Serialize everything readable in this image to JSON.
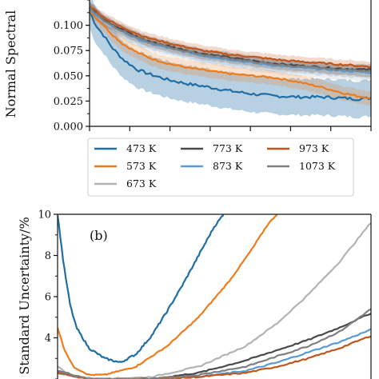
{
  "chart_data": [
    {
      "type": "line",
      "panel": "a",
      "ylabel": "Normal Spectral",
      "ylim": [
        0.0,
        0.125
      ],
      "yticks": [
        "0.000",
        "0.025",
        "0.050",
        "0.075",
        "0.100"
      ],
      "ytick_values": [
        0.0,
        0.025,
        0.05,
        0.075,
        0.1
      ],
      "xlim": [
        0,
        1
      ],
      "bands": true,
      "series": [
        {
          "name": "473 K",
          "color": "#1f6ea5",
          "x": [
            0.0,
            0.02,
            0.05,
            0.08,
            0.12,
            0.17,
            0.22,
            0.28,
            0.35,
            0.42,
            0.5,
            0.58,
            0.66,
            0.74,
            0.82,
            0.9,
            0.95,
            1.0
          ],
          "values": [
            0.115,
            0.101,
            0.09,
            0.078,
            0.066,
            0.056,
            0.051,
            0.046,
            0.042,
            0.039,
            0.035,
            0.032,
            0.03,
            0.029,
            0.029,
            0.028,
            0.027,
            0.028
          ],
          "band": 0.018
        },
        {
          "name": "573 K",
          "color": "#ec7c1e",
          "x": [
            0.0,
            0.02,
            0.05,
            0.08,
            0.12,
            0.17,
            0.22,
            0.28,
            0.35,
            0.42,
            0.5,
            0.58,
            0.66,
            0.74,
            0.82,
            0.9,
            0.95,
            1.0
          ],
          "values": [
            0.115,
            0.108,
            0.1,
            0.091,
            0.081,
            0.073,
            0.067,
            0.062,
            0.058,
            0.055,
            0.052,
            0.05,
            0.048,
            0.044,
            0.039,
            0.033,
            0.03,
            0.028
          ],
          "band": 0.007
        },
        {
          "name": "673 K",
          "color": "#b3b3b3",
          "x": [
            0.0,
            0.05,
            0.1,
            0.15,
            0.2,
            0.3,
            0.4,
            0.5,
            0.6,
            0.7,
            0.8,
            0.9,
            1.0
          ],
          "values": [
            0.117,
            0.103,
            0.094,
            0.087,
            0.081,
            0.074,
            0.068,
            0.064,
            0.06,
            0.057,
            0.054,
            0.052,
            0.05
          ],
          "band": 0.006
        },
        {
          "name": "773 K",
          "color": "#4a4a4a",
          "x": [
            0.0,
            0.05,
            0.1,
            0.15,
            0.2,
            0.3,
            0.4,
            0.5,
            0.6,
            0.7,
            0.8,
            0.9,
            1.0
          ],
          "values": [
            0.118,
            0.106,
            0.098,
            0.091,
            0.085,
            0.078,
            0.072,
            0.068,
            0.064,
            0.061,
            0.059,
            0.057,
            0.056
          ],
          "band": 0.005
        },
        {
          "name": "873 K",
          "color": "#5a9bd4",
          "x": [
            0.0,
            0.05,
            0.1,
            0.15,
            0.2,
            0.3,
            0.4,
            0.5,
            0.6,
            0.7,
            0.8,
            0.9,
            1.0
          ],
          "values": [
            0.116,
            0.104,
            0.096,
            0.089,
            0.083,
            0.076,
            0.07,
            0.066,
            0.062,
            0.059,
            0.057,
            0.055,
            0.053
          ],
          "band": 0.006
        },
        {
          "name": "973 K",
          "color": "#c0561b",
          "x": [
            0.0,
            0.05,
            0.1,
            0.15,
            0.2,
            0.3,
            0.4,
            0.5,
            0.6,
            0.7,
            0.8,
            0.9,
            1.0
          ],
          "values": [
            0.119,
            0.108,
            0.1,
            0.094,
            0.088,
            0.081,
            0.075,
            0.071,
            0.068,
            0.065,
            0.063,
            0.061,
            0.059
          ],
          "band": 0.005
        },
        {
          "name": "1073 K",
          "color": "#7f7f7f",
          "x": [
            0.0,
            0.05,
            0.1,
            0.15,
            0.2,
            0.3,
            0.4,
            0.5,
            0.6,
            0.7,
            0.8,
            0.9,
            1.0
          ],
          "values": [
            0.117,
            0.105,
            0.097,
            0.09,
            0.084,
            0.077,
            0.071,
            0.067,
            0.063,
            0.06,
            0.058,
            0.056,
            0.055
          ],
          "band": 0.005
        }
      ]
    },
    {
      "type": "line",
      "panel": "b",
      "annotation": "(b)",
      "ylabel": "Standard Uncertainty/%",
      "ylim": [
        2.0,
        10.0
      ],
      "yticks": [
        "4",
        "6",
        "8",
        "10"
      ],
      "ytick_values": [
        4,
        6,
        8,
        10
      ],
      "xlim": [
        0,
        1
      ],
      "series": [
        {
          "name": "473 K",
          "color": "#1f6ea5",
          "x": [
            0.0,
            0.02,
            0.04,
            0.06,
            0.1,
            0.15,
            0.2,
            0.25,
            0.3,
            0.35,
            0.4,
            0.45,
            0.5,
            0.53
          ],
          "values": [
            10.0,
            7.5,
            5.6,
            4.5,
            3.5,
            3.0,
            2.8,
            3.2,
            4.1,
            5.3,
            6.6,
            8.0,
            9.4,
            10.0
          ]
        },
        {
          "name": "573 K",
          "color": "#ec7c1e",
          "x": [
            0.0,
            0.02,
            0.05,
            0.1,
            0.15,
            0.25,
            0.35,
            0.45,
            0.55,
            0.62,
            0.67,
            0.7
          ],
          "values": [
            4.5,
            3.5,
            2.6,
            2.2,
            2.2,
            2.6,
            3.6,
            5.0,
            6.8,
            8.3,
            9.5,
            10.0
          ]
        },
        {
          "name": "673 K",
          "color": "#b3b3b3",
          "x": [
            0.0,
            0.05,
            0.15,
            0.3,
            0.45,
            0.6,
            0.7,
            0.8,
            0.9,
            1.0
          ],
          "values": [
            2.6,
            2.1,
            2.0,
            2.1,
            2.6,
            3.6,
            4.7,
            6.1,
            7.7,
            9.6
          ]
        },
        {
          "name": "773 K",
          "color": "#4a4a4a",
          "x": [
            0.0,
            0.1,
            0.3,
            0.45,
            0.6,
            0.7,
            0.8,
            0.9,
            1.0
          ],
          "values": [
            2.4,
            2.0,
            2.0,
            2.3,
            2.9,
            3.4,
            3.9,
            4.5,
            5.2
          ]
        },
        {
          "name": "873 K",
          "color": "#5a9bd4",
          "x": [
            0.0,
            0.1,
            0.3,
            0.45,
            0.6,
            0.7,
            0.8,
            0.9,
            1.0
          ],
          "values": [
            2.3,
            2.0,
            2.0,
            2.1,
            2.4,
            2.8,
            3.3,
            3.8,
            4.4
          ]
        },
        {
          "name": "973 K",
          "color": "#c0561b",
          "x": [
            0.0,
            0.1,
            0.3,
            0.45,
            0.6,
            0.7,
            0.8,
            0.9,
            1.0
          ],
          "values": [
            2.3,
            2.0,
            2.0,
            2.1,
            2.3,
            2.6,
            3.0,
            3.5,
            4.1
          ]
        },
        {
          "name": "1073 K",
          "color": "#7f7f7f",
          "x": [
            0.0,
            0.1,
            0.3,
            0.45,
            0.6,
            0.7,
            0.8,
            0.9,
            1.0
          ],
          "values": [
            2.4,
            2.0,
            2.0,
            2.2,
            2.6,
            3.1,
            3.6,
            4.3,
            5.4
          ]
        }
      ]
    }
  ],
  "legend": {
    "placement": "between-panels",
    "entries": [
      {
        "label": "473 K",
        "color": "#1f6ea5"
      },
      {
        "label": "773 K",
        "color": "#4a4a4a"
      },
      {
        "label": "973 K",
        "color": "#c0561b"
      },
      {
        "label": "573 K",
        "color": "#ec7c1e"
      },
      {
        "label": "873 K",
        "color": "#5a9bd4"
      },
      {
        "label": "1073 K",
        "color": "#7f7f7f"
      },
      {
        "label": "673 K",
        "color": "#b3b3b3"
      }
    ]
  }
}
